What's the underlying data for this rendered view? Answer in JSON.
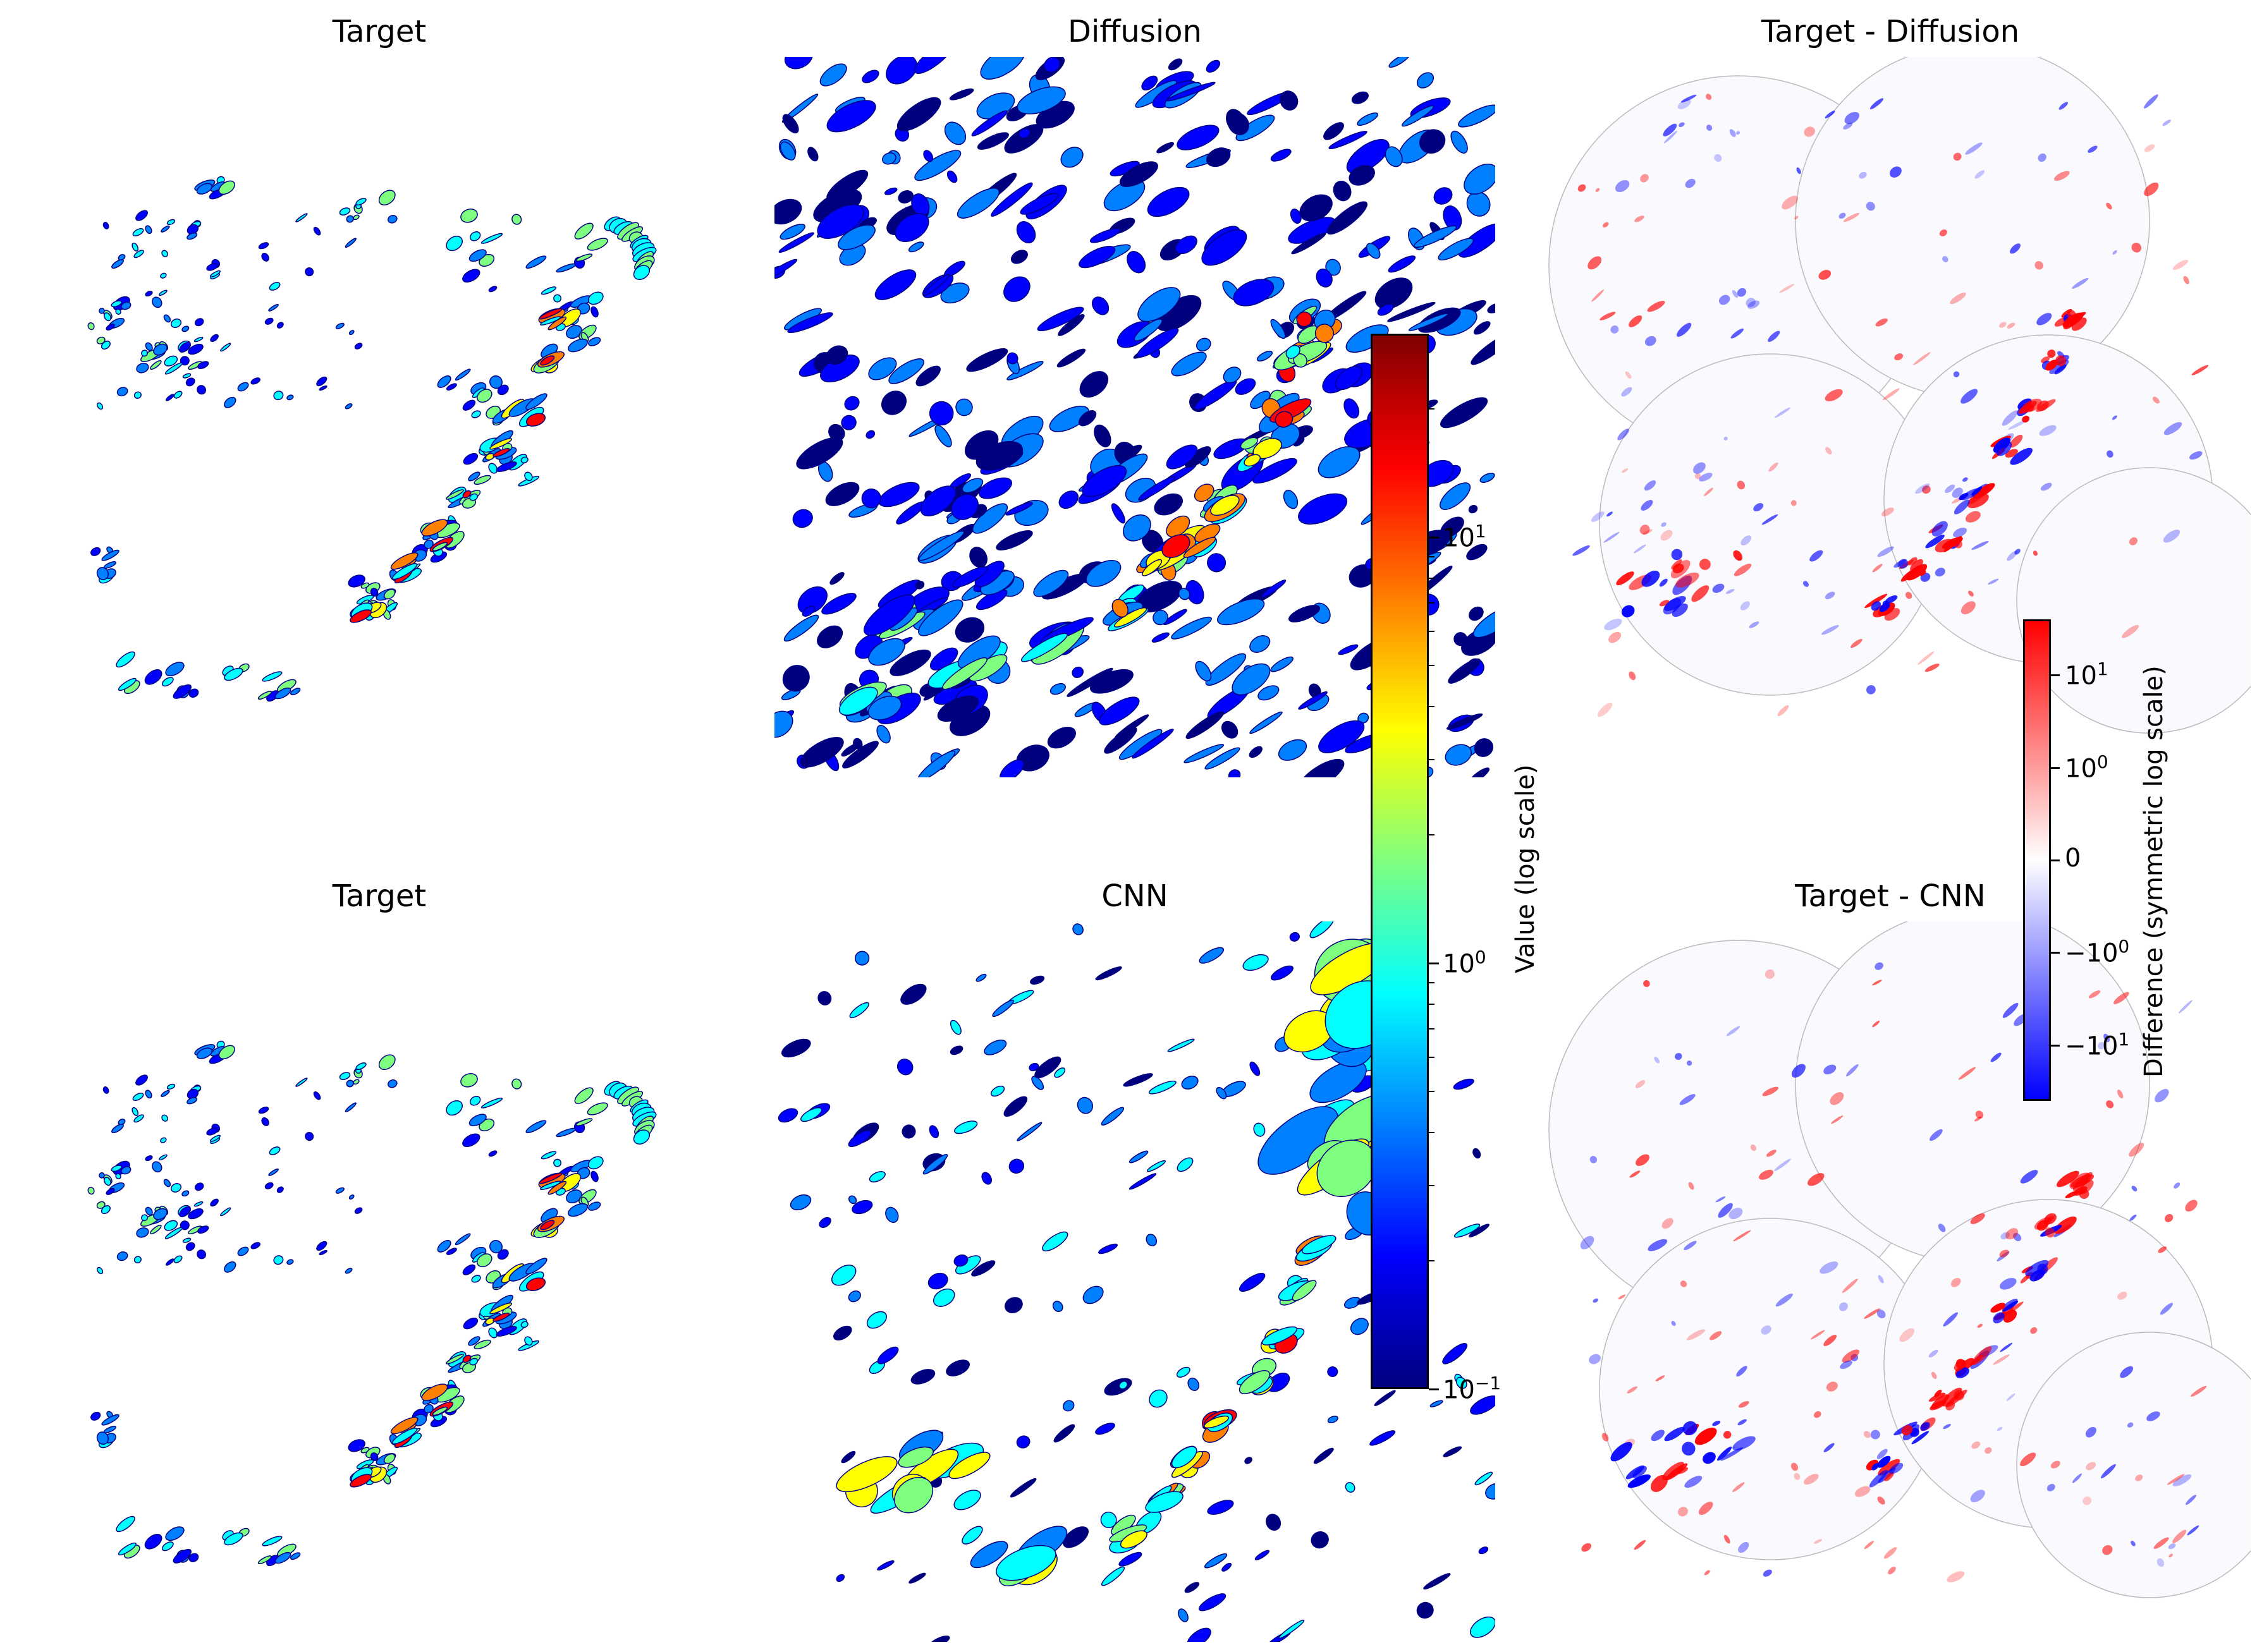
{
  "chart_data": {
    "type": "heatmap",
    "panels": [
      {
        "id": "top-target",
        "title": "Target",
        "row": 1,
        "col": 1,
        "style": "value"
      },
      {
        "id": "top-model",
        "title": "Diffusion",
        "row": 1,
        "col": 2,
        "style": "value"
      },
      {
        "id": "top-diff",
        "title": "Target - Diffusion",
        "row": 1,
        "col": 3,
        "style": "difference"
      },
      {
        "id": "bottom-target",
        "title": "Target",
        "row": 2,
        "col": 1,
        "style": "value"
      },
      {
        "id": "bottom-model",
        "title": "CNN",
        "row": 2,
        "col": 2,
        "style": "value"
      },
      {
        "id": "bottom-diff",
        "title": "Target - CNN",
        "row": 2,
        "col": 3,
        "style": "difference"
      }
    ],
    "value_colorbar": {
      "label": "Value (log scale)",
      "colormap": "jet",
      "scale": "log",
      "range": [
        0.1,
        30
      ],
      "ticks": [
        {
          "value": 0.1,
          "base": "10",
          "exp": "−1"
        },
        {
          "value": 1,
          "base": "10",
          "exp": "0"
        },
        {
          "value": 10,
          "base": "10",
          "exp": "1"
        }
      ]
    },
    "difference_colorbar": {
      "label": "Difference (symmetric log scale)",
      "colormap": "bwr",
      "scale": "symlog",
      "range": [
        -40,
        40
      ],
      "ticks": [
        {
          "value": 10,
          "base": "10",
          "exp": "1",
          "sign": ""
        },
        {
          "value": 1,
          "base": "10",
          "exp": "0",
          "sign": ""
        },
        {
          "value": 0,
          "base": "0",
          "exp": "",
          "sign": ""
        },
        {
          "value": -1,
          "base": "10",
          "exp": "0",
          "sign": "−"
        },
        {
          "value": -10,
          "base": "10",
          "exp": "1",
          "sign": "−"
        }
      ]
    }
  },
  "colors": {
    "jet": [
      "#00007f",
      "#0000ff",
      "#007fff",
      "#00ffff",
      "#7fff7f",
      "#ffff00",
      "#ff7f00",
      "#ff0000",
      "#7f0000"
    ],
    "bwr": [
      "#0000ff",
      "#ffffff",
      "#ff0000"
    ],
    "domain_outline": "#bbbbbb"
  }
}
